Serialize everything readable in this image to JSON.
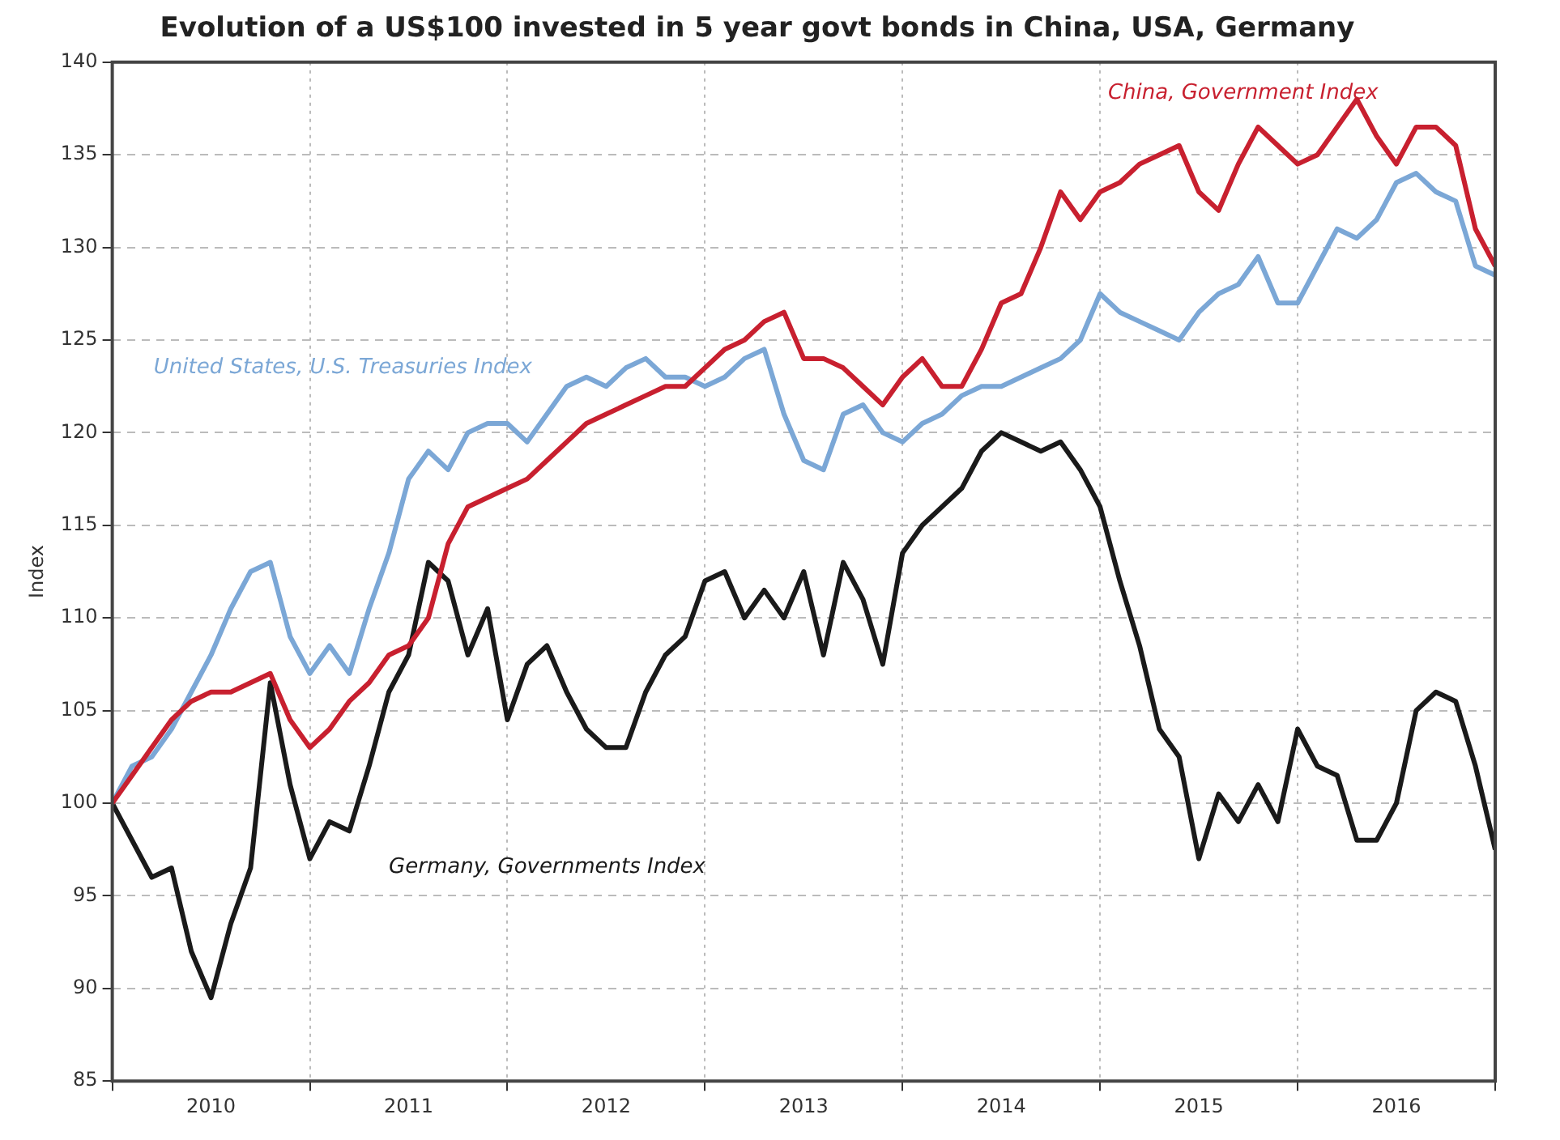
{
  "chart_data": {
    "type": "line",
    "title": "Evolution of a US$100 invested in 5 year govt bonds in China, USA, Germany",
    "ylabel": "Index",
    "x": [
      2010.0,
      2010.1,
      2010.2,
      2010.3,
      2010.4,
      2010.5,
      2010.6,
      2010.7,
      2010.8,
      2010.9,
      2011.0,
      2011.1,
      2011.2,
      2011.3,
      2011.4,
      2011.5,
      2011.6,
      2011.7,
      2011.8,
      2011.9,
      2012.0,
      2012.1,
      2012.2,
      2012.3,
      2012.4,
      2012.5,
      2012.6,
      2012.7,
      2012.8,
      2012.9,
      2013.0,
      2013.1,
      2013.2,
      2013.3,
      2013.4,
      2013.5,
      2013.6,
      2013.7,
      2013.8,
      2013.9,
      2014.0,
      2014.1,
      2014.2,
      2014.3,
      2014.4,
      2014.5,
      2014.6,
      2014.7,
      2014.8,
      2014.9,
      2015.0,
      2015.1,
      2015.2,
      2015.3,
      2015.4,
      2015.5,
      2015.6,
      2015.7,
      2015.8,
      2015.9,
      2016.0,
      2016.1,
      2016.2,
      2016.3,
      2016.4,
      2016.5,
      2016.6,
      2016.7,
      2016.8,
      2016.9,
      2017.0
    ],
    "series": [
      {
        "name": "China, Government Index",
        "color": "#c8202f",
        "values": [
          100,
          101.5,
          103,
          104.5,
          105.5,
          106,
          106,
          106.5,
          107,
          104.5,
          103,
          104,
          105.5,
          106.5,
          108,
          108.5,
          110,
          114,
          116,
          116.5,
          117,
          117.5,
          118.5,
          119.5,
          120.5,
          121,
          121.5,
          122,
          122.5,
          122.5,
          123.5,
          124.5,
          125,
          126,
          126.5,
          124,
          124,
          123.5,
          122.5,
          121.5,
          123,
          124,
          122.5,
          122.5,
          124.5,
          127,
          127.5,
          130,
          133,
          131.5,
          133,
          133.5,
          134.5,
          135,
          135.5,
          133,
          132,
          134.5,
          136.5,
          135.5,
          134.5,
          135,
          136.5,
          138,
          136,
          134.5,
          136.5,
          136.5,
          135.5,
          131,
          129
        ]
      },
      {
        "name": "United States, U.S. Treasuries Index",
        "color": "#7ba7d6",
        "values": [
          100,
          102,
          102.5,
          104,
          106,
          108,
          110.5,
          112.5,
          113,
          109,
          107,
          108.5,
          107,
          110.5,
          113.5,
          117.5,
          119,
          118,
          120,
          120.5,
          120.5,
          119.5,
          121,
          122.5,
          123,
          122.5,
          123.5,
          124,
          123,
          123,
          122.5,
          123,
          124,
          124.5,
          121,
          118.5,
          118,
          121,
          121.5,
          120,
          119.5,
          120.5,
          121,
          122,
          122.5,
          122.5,
          123,
          123.5,
          124,
          125,
          127.5,
          126.5,
          126,
          125.5,
          125,
          126.5,
          127.5,
          128,
          129.5,
          127,
          127,
          129,
          131,
          130.5,
          131.5,
          133.5,
          134,
          133,
          132.5,
          129,
          128.5
        ]
      },
      {
        "name": "Germany, Governments Index",
        "color": "#1a1a1a",
        "values": [
          100,
          98,
          96,
          96.5,
          92,
          89.5,
          93.5,
          96.5,
          106.5,
          101,
          97,
          99,
          98.5,
          102,
          106,
          108,
          113,
          112,
          108,
          110.5,
          104.5,
          107.5,
          108.5,
          106,
          104,
          103,
          103,
          106,
          108,
          109,
          112,
          112.5,
          110,
          111.5,
          110,
          112.5,
          108,
          113,
          111,
          107.5,
          113.5,
          115,
          116,
          117,
          119,
          120,
          119.5,
          119,
          119.5,
          118,
          116,
          112,
          108.5,
          104,
          102.5,
          97,
          100.5,
          99,
          101,
          99,
          104,
          102,
          101.5,
          98,
          98,
          100,
          105,
          106,
          105.5,
          102,
          97.5
        ]
      }
    ],
    "xlim": [
      2010,
      2017
    ],
    "xticks": [
      {
        "value": 2010,
        "label": null
      },
      {
        "value": 2010.5,
        "label": "2010"
      },
      {
        "value": 2011,
        "label": null
      },
      {
        "value": 2011.5,
        "label": "2011"
      },
      {
        "value": 2012,
        "label": null
      },
      {
        "value": 2012.5,
        "label": "2012"
      },
      {
        "value": 2013,
        "label": null
      },
      {
        "value": 2013.5,
        "label": "2013"
      },
      {
        "value": 2014,
        "label": null
      },
      {
        "value": 2014.5,
        "label": "2014"
      },
      {
        "value": 2015,
        "label": null
      },
      {
        "value": 2015.5,
        "label": "2015"
      },
      {
        "value": 2016,
        "label": null
      },
      {
        "value": 2016.5,
        "label": "2016"
      },
      {
        "value": 2017,
        "label": null
      }
    ],
    "ylim": [
      85,
      140
    ],
    "yticks": [
      85,
      90,
      95,
      100,
      105,
      110,
      115,
      120,
      125,
      130,
      135,
      140
    ],
    "grid": true,
    "legend": false,
    "marker": "none",
    "line_style": "solid"
  }
}
